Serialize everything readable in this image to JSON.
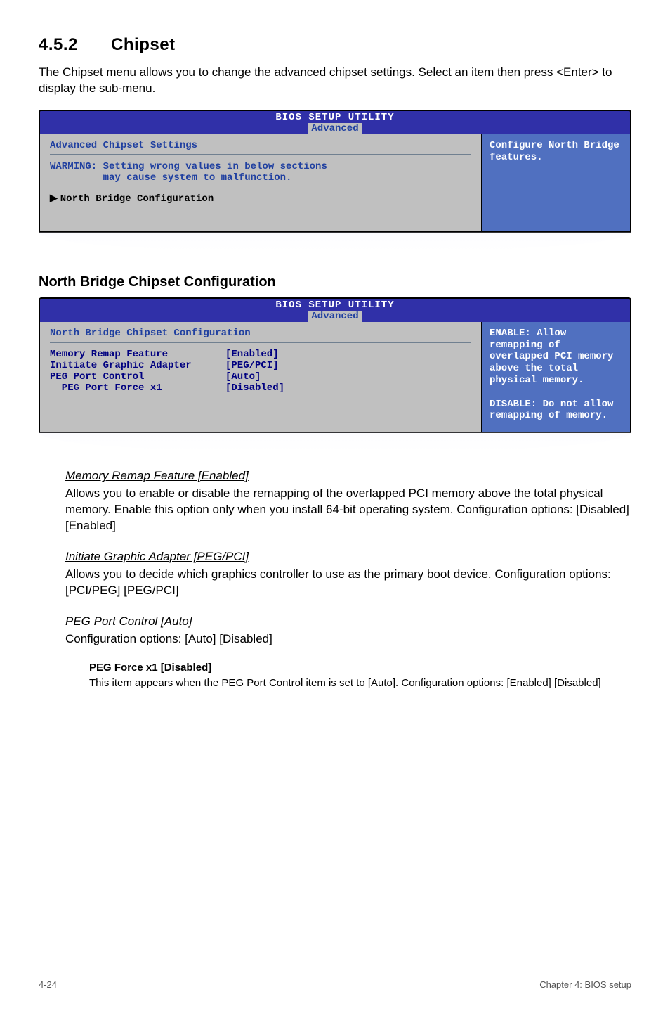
{
  "heading": {
    "number": "4.5.2",
    "title": "Chipset"
  },
  "intro": "The Chipset menu allows you to change the advanced chipset settings. Select an item then press <Enter> to display the sub-menu.",
  "bios_common": {
    "utility_title": "BIOS SETUP UTILITY",
    "tab": "Advanced",
    "colors": {
      "header_bg": "#3030a8",
      "tab_bg": "#c0c0c0",
      "tab_fg": "#2040a0",
      "left_bg": "#c0c0c0",
      "right_bg": "#5070c0",
      "key_color": "#000080",
      "right_fg": "#ffffff"
    }
  },
  "panel1": {
    "left_title": "Advanced Chipset Settings",
    "warning_line1": "WARMING: Setting wrong values in below sections",
    "warning_line2": "         may cause system to malfunction.",
    "nav_item": "North Bridge Configuration",
    "right_text": "Configure North Bridge features."
  },
  "sub_heading": "North Bridge Chipset Configuration",
  "panel2": {
    "left_title": "North Bridge Chipset Configuration",
    "rows": [
      {
        "key": "Memory Remap Feature",
        "val": "[Enabled]"
      },
      {
        "key": "Initiate Graphic Adapter",
        "val": "[PEG/PCI]"
      },
      {
        "key": "PEG Port Control",
        "val": "[Auto]"
      },
      {
        "key": "  PEG Port Force x1",
        "val": "[Disabled]"
      }
    ],
    "right_text": "ENABLE: Allow remapping of overlapped PCI memory above the total physical memory.\n\nDISABLE: Do not allow remapping of memory."
  },
  "items": [
    {
      "title": "Memory Remap Feature [Enabled]",
      "body": "Allows you to enable or disable the remapping of the overlapped PCI memory above the total physical memory. Enable this option only when you install 64-bit operating system. Configuration options: [Disabled] [Enabled]"
    },
    {
      "title": "Initiate Graphic Adapter [PEG/PCI]",
      "body": "Allows you to decide which graphics controller to use as the primary boot device. Configuration options: [PCI/PEG] [PEG/PCI]"
    },
    {
      "title": "PEG Port Control [Auto]",
      "body": "Configuration options: [Auto] [Disabled]"
    }
  ],
  "sub_item": {
    "title": "PEG Force x1 [Disabled]",
    "body": "This item appears when the PEG Port Control item is set to [Auto]. Configuration options: [Enabled] [Disabled]"
  },
  "footer": {
    "left": "4-24",
    "right": "Chapter 4: BIOS setup"
  }
}
